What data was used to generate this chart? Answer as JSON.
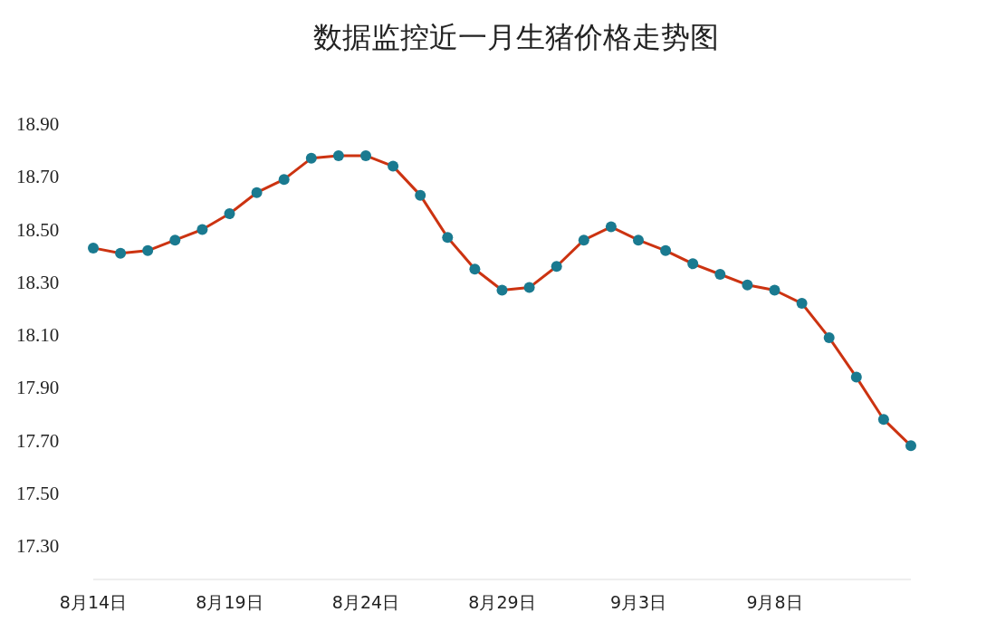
{
  "chart_data": {
    "type": "line",
    "title": "数据监控近一月生猪价格走势图",
    "x": [
      "--08-14",
      "--08-15",
      "--08-16",
      "--08-17",
      "--08-18",
      "--08-19",
      "--08-20",
      "--08-21",
      "--08-22",
      "--08-23",
      "--08-24",
      "--08-25",
      "--08-26",
      "--08-27",
      "--08-28",
      "--08-29",
      "--08-30",
      "--08-31",
      "--09-01",
      "--09-02",
      "--09-03",
      "--09-04",
      "--09-05",
      "--09-06",
      "--09-07",
      "--09-08",
      "--09-09",
      "--09-10",
      "--09-11",
      "--09-12",
      "--09-13"
    ],
    "series": [
      {
        "color": "#cc3311",
        "colors": [
          "#1a7a90",
          "#1a7a90",
          "#1a7a90",
          "#1a7a90",
          "#1a7a90",
          "#1a7a90",
          "#1a7a90",
          "#1a7a90",
          "#1a7a90",
          "#1a7a90",
          "#1a7a90",
          "#1a7a90",
          "#1a7a90",
          "#1a7a90",
          "#1a7a90",
          "#1a7a90",
          "#1a7a90",
          "#1a7a90",
          "#1a7a90",
          "#1a7a90",
          "#1a7a90",
          "#1a7a90",
          "#1a7a90",
          "#1a7a90",
          "#1a7a90",
          "#1a7a90",
          "#1a7a90",
          "#1a7a90",
          "#1a7a90",
          "#1a7a90",
          "#1a7a90"
        ],
        "values": [
          18.43,
          18.41,
          18.42,
          18.46,
          18.5,
          18.56,
          18.64,
          18.69,
          18.77,
          18.78,
          18.78,
          18.74,
          18.63,
          18.47,
          18.35,
          18.27,
          18.28,
          18.36,
          18.46,
          18.51,
          18.46,
          18.42,
          18.37,
          18.33,
          18.29,
          18.27,
          18.22,
          18.09,
          17.94,
          17.78,
          17.68
        ]
      }
    ],
    "marker": "circle",
    "line_style": "solid",
    "xticks": [
      {
        "value": "--08-14",
        "label": "8月14日"
      },
      {
        "value": "--08-19",
        "label": "8月19日"
      },
      {
        "value": "--08-24",
        "label": "8月24日"
      },
      {
        "value": "--08-29",
        "label": "8月29日"
      },
      {
        "value": "--09-03",
        "label": "9月3日"
      },
      {
        "value": "--09-08",
        "label": "9月8日"
      }
    ],
    "xlim": [
      "--08-14",
      "--09-13"
    ],
    "ylim": [
      17.3,
      18.9
    ],
    "yticks": [
      {
        "value": 17.3,
        "label": "17.30"
      },
      {
        "value": 17.5,
        "label": "17.50"
      },
      {
        "value": 17.7,
        "label": "17.70"
      },
      {
        "value": 17.9,
        "label": "17.90"
      },
      {
        "value": 18.1,
        "label": "18.10"
      },
      {
        "value": 18.3,
        "label": "18.30"
      },
      {
        "value": 18.5,
        "label": "18.50"
      },
      {
        "value": 18.7,
        "label": "18.70"
      },
      {
        "value": 18.9,
        "label": "18.90"
      }
    ]
  }
}
